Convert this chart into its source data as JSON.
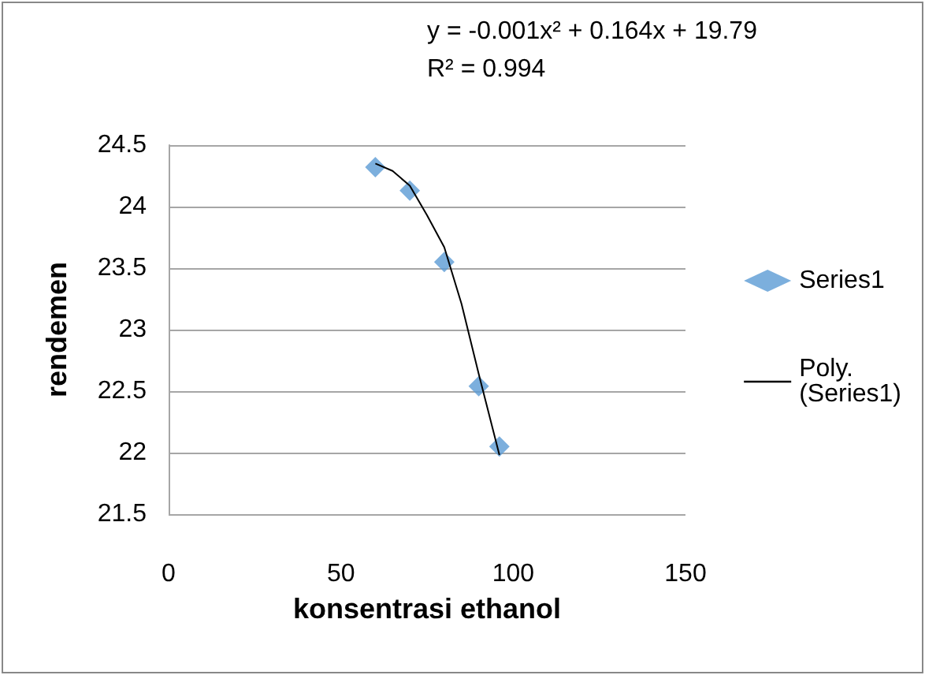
{
  "chart_data": {
    "type": "scatter",
    "xlabel": "konsentrasi ethanol",
    "ylabel": "rendemen",
    "annotations": [
      "y = -0.001x² + 0.164x + 19.79",
      "R² = 0.994"
    ],
    "series": [
      {
        "name": "Series1",
        "color": "#5b9bd5",
        "marker": "diamond",
        "x": [
          60,
          70,
          80,
          90,
          96
        ],
        "values": [
          24.32,
          24.13,
          23.55,
          22.54,
          22.05
        ]
      },
      {
        "name": "Poly. (Series1)",
        "type": "line",
        "color": "#000000",
        "x": [
          60,
          65,
          70,
          75,
          80,
          85,
          90,
          96
        ],
        "values": [
          24.35,
          24.29,
          24.17,
          23.93,
          23.67,
          23.21,
          22.64,
          21.98
        ]
      }
    ],
    "xlim": [
      0,
      150
    ],
    "xticks": [
      0,
      50,
      100,
      150
    ],
    "ylim": [
      21.5,
      24.5
    ],
    "yticks": [
      21.5,
      22,
      22.5,
      23,
      23.5,
      24,
      24.5
    ],
    "grid": "y",
    "legend": "right"
  }
}
